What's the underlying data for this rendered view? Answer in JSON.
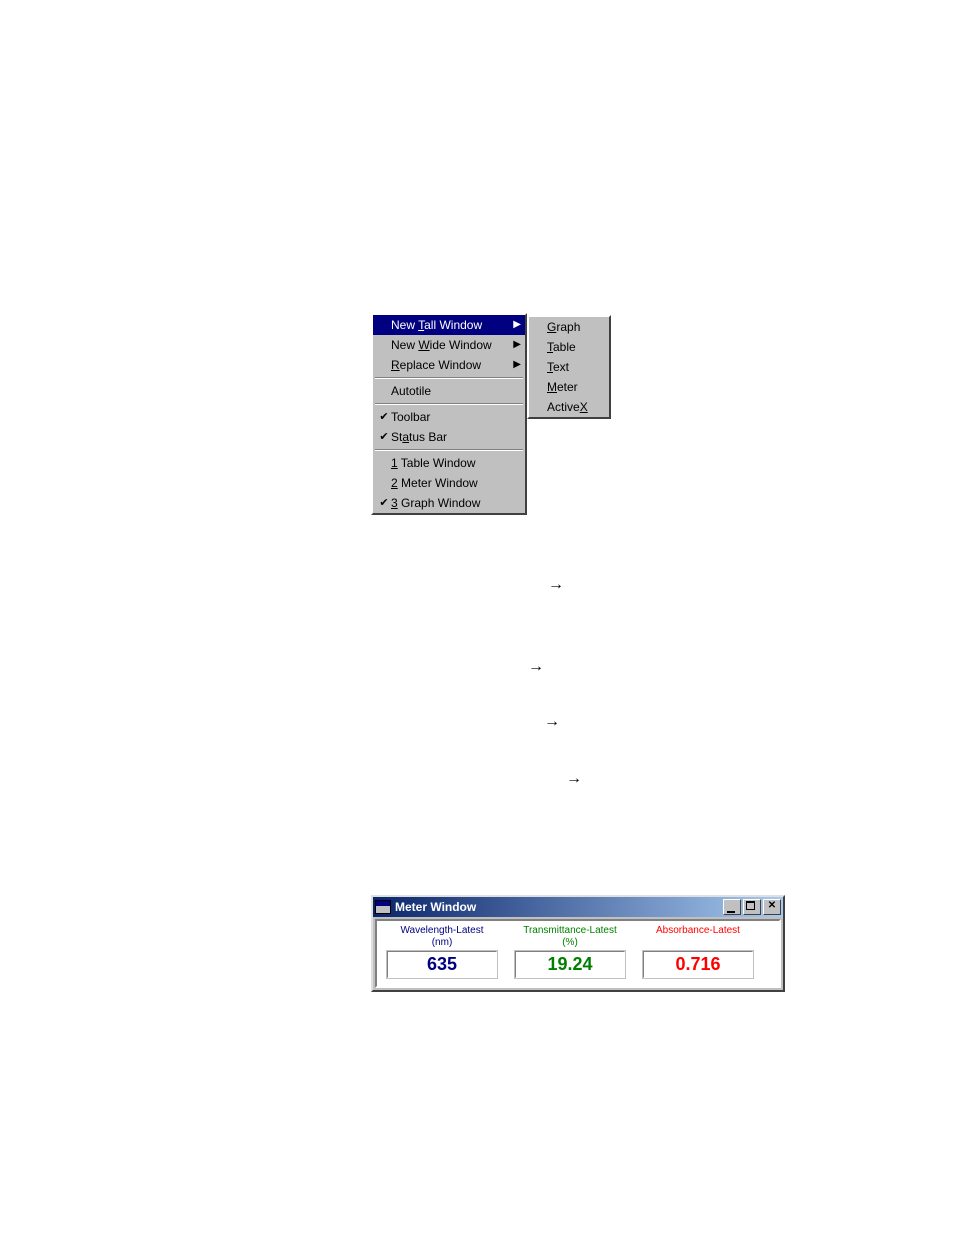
{
  "menu": {
    "main_items": [
      {
        "pre": "New ",
        "u": "T",
        "post": "all Window",
        "arrow": true,
        "checked": false,
        "selected": true
      },
      {
        "pre": "New ",
        "u": "W",
        "post": "ide Window",
        "arrow": true,
        "checked": false,
        "selected": false
      },
      {
        "pre": "",
        "u": "R",
        "post": "eplace Window",
        "arrow": true,
        "checked": false,
        "selected": false
      },
      "---",
      {
        "pre": "Autotile",
        "u": "",
        "post": "",
        "arrow": false,
        "checked": false,
        "selected": false
      },
      "---",
      {
        "pre": "Toolbar",
        "u": "",
        "post": "",
        "arrow": false,
        "checked": true,
        "selected": false
      },
      {
        "pre": "St",
        "u": "a",
        "post": "tus Bar",
        "arrow": false,
        "checked": true,
        "selected": false
      },
      "---",
      {
        "pre": "",
        "u": "1",
        "post": " Table  Window",
        "arrow": false,
        "checked": false,
        "selected": false
      },
      {
        "pre": "",
        "u": "2",
        "post": " Meter  Window",
        "arrow": false,
        "checked": false,
        "selected": false
      },
      {
        "pre": "",
        "u": "3",
        "post": " Graph Window",
        "arrow": false,
        "checked": true,
        "selected": false
      }
    ],
    "sub_items": [
      {
        "u": "G",
        "post": "raph"
      },
      {
        "u": "T",
        "post": "able"
      },
      {
        "u": "T",
        "post": "ext"
      },
      {
        "u": "M",
        "post": "eter"
      },
      {
        "pre": "Active",
        "u": "X",
        "post": ""
      }
    ]
  },
  "meter": {
    "title": "Meter  Window",
    "cells": [
      {
        "label_l1": "Wavelength-Latest",
        "label_l2": "(nm)",
        "value": "635",
        "color": "#000080"
      },
      {
        "label_l1": "Transmittance-Latest",
        "label_l2": "(%)",
        "value": "19.24",
        "color": "#008000"
      },
      {
        "label_l1": "Absorbance-Latest",
        "label_l2": "",
        "value": "0.716",
        "color": "#ff0000"
      }
    ]
  },
  "style": {
    "menu_bg": "#c0c0c0",
    "menu_highlight_bg": "#000080",
    "menu_highlight_fg": "#ffffff",
    "titlebar_gradient_from": "#0a246a",
    "titlebar_gradient_to": "#a6caf0"
  }
}
